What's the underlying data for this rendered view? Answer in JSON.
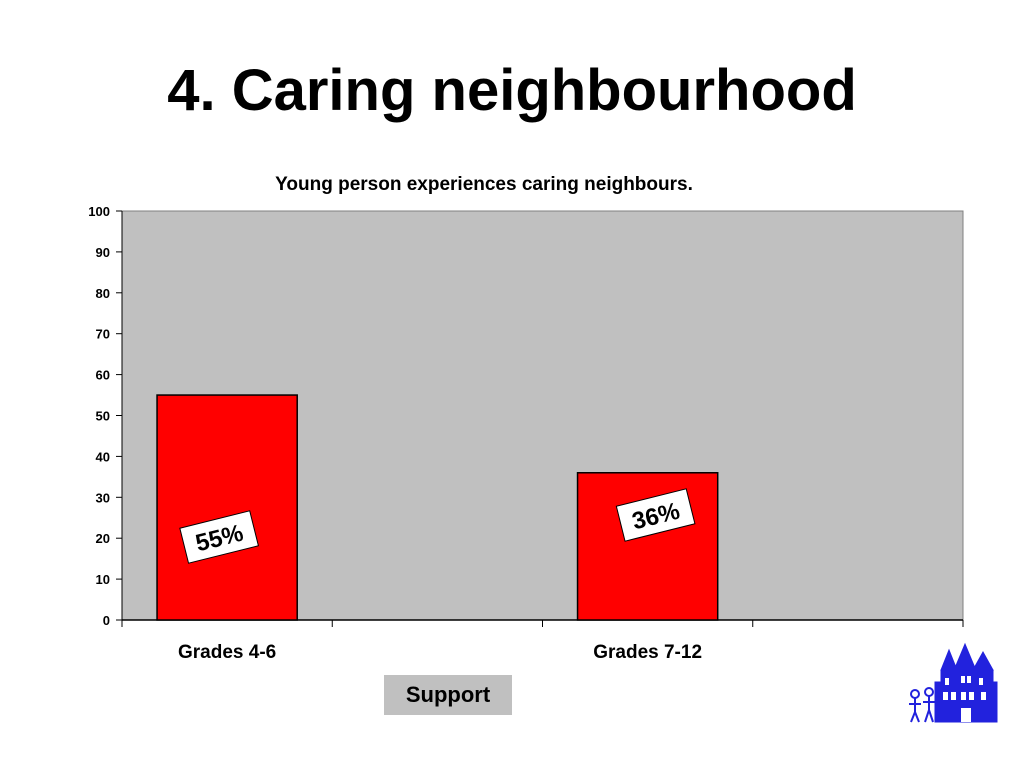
{
  "slide": {
    "title": "4. Caring neighbourhood",
    "support_button": "Support"
  },
  "colors": {
    "bar": "#ff0000",
    "plot_background": "#c0c0c0",
    "logo": "#2222dd"
  },
  "logo": {
    "icon": "castle-with-figures-icon"
  },
  "chart_data": {
    "type": "bar",
    "title": "Young person experiences caring neighbours.",
    "categories": [
      "Grades 4-6",
      "Grades 7-12"
    ],
    "values": [
      55,
      36
    ],
    "data_labels": [
      "55%",
      "36%"
    ],
    "ylim": [
      0,
      100
    ],
    "yticks": [
      0,
      10,
      20,
      30,
      40,
      50,
      60,
      70,
      80,
      90,
      100
    ],
    "xlabel": "",
    "ylabel": "",
    "grid": false,
    "legend": "none"
  }
}
